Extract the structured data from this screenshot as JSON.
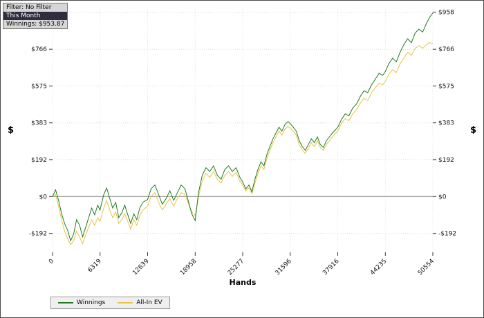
{
  "info_box": {
    "line1": "Filter: No Filter",
    "line2": "This Month",
    "line3": "Winnings: $953.87"
  },
  "chart_data": {
    "type": "line",
    "title": "",
    "xlabel": "Hands",
    "ylabel_left": "$",
    "ylabel_right": "$",
    "xlim": [
      0,
      50554
    ],
    "ylim": [
      -290,
      975
    ],
    "grid": "dotted",
    "legend_position": "bottom-left",
    "zero_line": 0,
    "colors": {
      "grid": "#dcdcdc",
      "zero_line": "#7f7f7f",
      "tick": "#333333"
    },
    "x_ticks": [
      {
        "value": 0,
        "label": "0"
      },
      {
        "value": 6319,
        "label": "6319"
      },
      {
        "value": 12639,
        "label": "12639"
      },
      {
        "value": 18958,
        "label": "18958"
      },
      {
        "value": 25277,
        "label": "25277"
      },
      {
        "value": 31596,
        "label": "31596"
      },
      {
        "value": 37916,
        "label": "37916"
      },
      {
        "value": 44235,
        "label": "44235"
      },
      {
        "value": 50554,
        "label": "50554"
      }
    ],
    "y_ticks": [
      {
        "value": 958,
        "label": "$958"
      },
      {
        "value": 766,
        "label": "$766"
      },
      {
        "value": 575,
        "label": "$575"
      },
      {
        "value": 383,
        "label": "$383"
      },
      {
        "value": 192,
        "label": "$192"
      },
      {
        "value": 0,
        "label": "$0"
      },
      {
        "value": -192,
        "label": "-$192"
      }
    ],
    "series": [
      {
        "name": "Winnings",
        "color": "#1f7a1f",
        "points": [
          [
            0,
            0
          ],
          [
            400,
            35
          ],
          [
            800,
            -20
          ],
          [
            1200,
            -90
          ],
          [
            1600,
            -140
          ],
          [
            2000,
            -175
          ],
          [
            2400,
            -230
          ],
          [
            2800,
            -195
          ],
          [
            3200,
            -120
          ],
          [
            3600,
            -150
          ],
          [
            4000,
            -210
          ],
          [
            4400,
            -160
          ],
          [
            4800,
            -110
          ],
          [
            5200,
            -60
          ],
          [
            5600,
            -95
          ],
          [
            6000,
            -45
          ],
          [
            6319,
            -70
          ],
          [
            6800,
            10
          ],
          [
            7200,
            45
          ],
          [
            7600,
            -10
          ],
          [
            8000,
            -60
          ],
          [
            8400,
            -30
          ],
          [
            8800,
            -110
          ],
          [
            9200,
            -85
          ],
          [
            9600,
            -45
          ],
          [
            10000,
            -95
          ],
          [
            10400,
            -140
          ],
          [
            10800,
            -90
          ],
          [
            11200,
            -120
          ],
          [
            11600,
            -60
          ],
          [
            12000,
            -30
          ],
          [
            12639,
            -15
          ],
          [
            13100,
            40
          ],
          [
            13600,
            60
          ],
          [
            14100,
            10
          ],
          [
            14600,
            -40
          ],
          [
            15100,
            -10
          ],
          [
            15600,
            30
          ],
          [
            16100,
            -20
          ],
          [
            16600,
            20
          ],
          [
            17100,
            60
          ],
          [
            17600,
            40
          ],
          [
            18100,
            -30
          ],
          [
            18500,
            -90
          ],
          [
            18958,
            -125
          ],
          [
            19400,
            20
          ],
          [
            19900,
            110
          ],
          [
            20400,
            150
          ],
          [
            20900,
            130
          ],
          [
            21400,
            160
          ],
          [
            21900,
            110
          ],
          [
            22400,
            90
          ],
          [
            22900,
            140
          ],
          [
            23400,
            160
          ],
          [
            23900,
            130
          ],
          [
            24400,
            150
          ],
          [
            24900,
            100
          ],
          [
            25277,
            75
          ],
          [
            25700,
            40
          ],
          [
            26100,
            60
          ],
          [
            26500,
            25
          ],
          [
            26900,
            90
          ],
          [
            27300,
            140
          ],
          [
            27700,
            180
          ],
          [
            28100,
            160
          ],
          [
            28500,
            220
          ],
          [
            28900,
            260
          ],
          [
            29300,
            300
          ],
          [
            29700,
            330
          ],
          [
            30100,
            360
          ],
          [
            30500,
            340
          ],
          [
            30900,
            375
          ],
          [
            31300,
            390
          ],
          [
            31596,
            380
          ],
          [
            32000,
            360
          ],
          [
            32400,
            340
          ],
          [
            32800,
            290
          ],
          [
            33200,
            260
          ],
          [
            33600,
            240
          ],
          [
            34000,
            270
          ],
          [
            34400,
            300
          ],
          [
            34800,
            280
          ],
          [
            35200,
            310
          ],
          [
            35600,
            270
          ],
          [
            36000,
            255
          ],
          [
            36400,
            290
          ],
          [
            36800,
            310
          ],
          [
            37200,
            330
          ],
          [
            37916,
            360
          ],
          [
            38400,
            400
          ],
          [
            38900,
            430
          ],
          [
            39400,
            420
          ],
          [
            39900,
            460
          ],
          [
            40400,
            480
          ],
          [
            40900,
            520
          ],
          [
            41400,
            550
          ],
          [
            41900,
            540
          ],
          [
            42400,
            580
          ],
          [
            42900,
            610
          ],
          [
            43400,
            640
          ],
          [
            43900,
            630
          ],
          [
            44235,
            650
          ],
          [
            44700,
            690
          ],
          [
            45200,
            720
          ],
          [
            45700,
            700
          ],
          [
            46200,
            750
          ],
          [
            46700,
            790
          ],
          [
            47200,
            820
          ],
          [
            47700,
            800
          ],
          [
            48200,
            850
          ],
          [
            48700,
            870
          ],
          [
            49200,
            855
          ],
          [
            49700,
            900
          ],
          [
            50100,
            930
          ],
          [
            50554,
            955
          ]
        ]
      },
      {
        "name": "All-In EV",
        "color": "#e8c345",
        "points": [
          [
            0,
            0
          ],
          [
            400,
            10
          ],
          [
            800,
            -50
          ],
          [
            1200,
            -120
          ],
          [
            1600,
            -180
          ],
          [
            2000,
            -220
          ],
          [
            2400,
            -250
          ],
          [
            2800,
            -230
          ],
          [
            3200,
            -180
          ],
          [
            3600,
            -210
          ],
          [
            4000,
            -245
          ],
          [
            4400,
            -200
          ],
          [
            4800,
            -160
          ],
          [
            5200,
            -120
          ],
          [
            5600,
            -150
          ],
          [
            6000,
            -110
          ],
          [
            6319,
            -130
          ],
          [
            6800,
            -60
          ],
          [
            7200,
            -20
          ],
          [
            7600,
            -70
          ],
          [
            8000,
            -110
          ],
          [
            8400,
            -80
          ],
          [
            8800,
            -140
          ],
          [
            9200,
            -120
          ],
          [
            9600,
            -90
          ],
          [
            10000,
            -130
          ],
          [
            10400,
            -170
          ],
          [
            10800,
            -120
          ],
          [
            11200,
            -150
          ],
          [
            11600,
            -100
          ],
          [
            12000,
            -70
          ],
          [
            12639,
            -50
          ],
          [
            13100,
            0
          ],
          [
            13600,
            20
          ],
          [
            14100,
            -30
          ],
          [
            14600,
            -70
          ],
          [
            15100,
            -40
          ],
          [
            15600,
            -10
          ],
          [
            16100,
            -50
          ],
          [
            16600,
            -10
          ],
          [
            17100,
            20
          ],
          [
            17600,
            10
          ],
          [
            18100,
            -40
          ],
          [
            18500,
            -80
          ],
          [
            18958,
            -100
          ],
          [
            19400,
            0
          ],
          [
            19900,
            80
          ],
          [
            20400,
            120
          ],
          [
            20900,
            100
          ],
          [
            21400,
            130
          ],
          [
            21900,
            90
          ],
          [
            22400,
            70
          ],
          [
            22900,
            110
          ],
          [
            23400,
            130
          ],
          [
            23900,
            105
          ],
          [
            24400,
            125
          ],
          [
            24900,
            80
          ],
          [
            25277,
            60
          ],
          [
            25700,
            30
          ],
          [
            26100,
            45
          ],
          [
            26500,
            15
          ],
          [
            26900,
            70
          ],
          [
            27300,
            120
          ],
          [
            27700,
            160
          ],
          [
            28100,
            140
          ],
          [
            28500,
            200
          ],
          [
            28900,
            240
          ],
          [
            29300,
            280
          ],
          [
            29700,
            310
          ],
          [
            30100,
            340
          ],
          [
            30500,
            320
          ],
          [
            30900,
            350
          ],
          [
            31300,
            365
          ],
          [
            31596,
            355
          ],
          [
            32000,
            340
          ],
          [
            32400,
            320
          ],
          [
            32800,
            270
          ],
          [
            33200,
            240
          ],
          [
            33600,
            225
          ],
          [
            34000,
            250
          ],
          [
            34400,
            280
          ],
          [
            34800,
            260
          ],
          [
            35200,
            290
          ],
          [
            35600,
            255
          ],
          [
            36000,
            240
          ],
          [
            36400,
            270
          ],
          [
            36800,
            290
          ],
          [
            37200,
            310
          ],
          [
            37916,
            340
          ],
          [
            38400,
            380
          ],
          [
            38900,
            405
          ],
          [
            39400,
            395
          ],
          [
            39900,
            430
          ],
          [
            40400,
            450
          ],
          [
            40900,
            485
          ],
          [
            41400,
            510
          ],
          [
            41900,
            500
          ],
          [
            42400,
            540
          ],
          [
            42900,
            565
          ],
          [
            43400,
            590
          ],
          [
            43900,
            580
          ],
          [
            44235,
            600
          ],
          [
            44700,
            635
          ],
          [
            45200,
            660
          ],
          [
            45700,
            645
          ],
          [
            46200,
            690
          ],
          [
            46700,
            720
          ],
          [
            47200,
            750
          ],
          [
            47700,
            735
          ],
          [
            48200,
            770
          ],
          [
            48700,
            785
          ],
          [
            49200,
            770
          ],
          [
            49700,
            790
          ],
          [
            50100,
            800
          ],
          [
            50554,
            795
          ]
        ]
      }
    ]
  }
}
